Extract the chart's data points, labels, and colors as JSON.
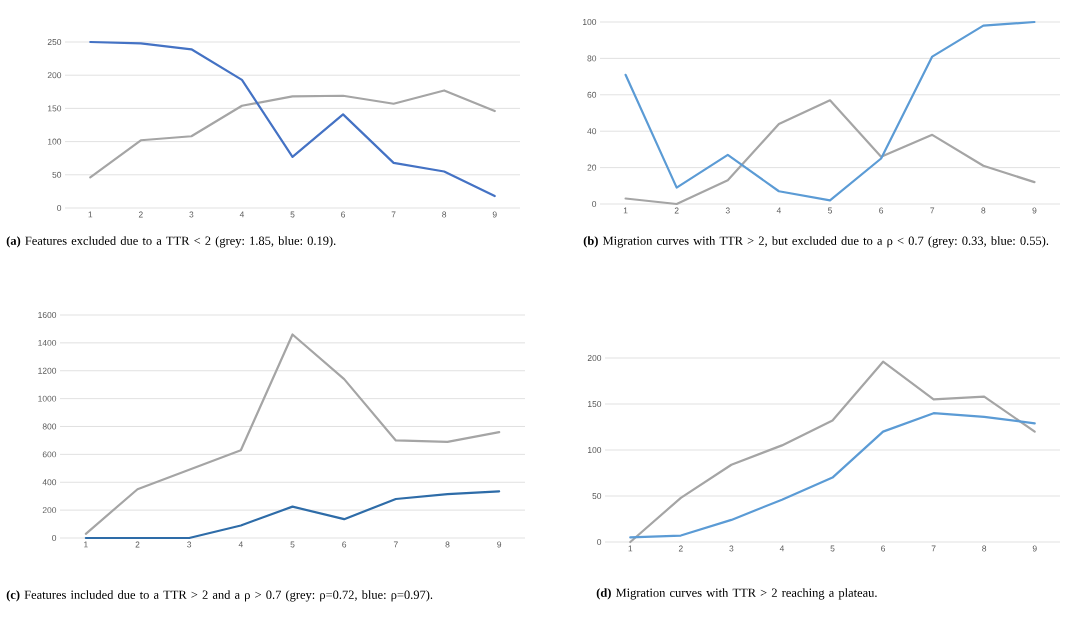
{
  "chart_data": [
    {
      "type": "line",
      "title": "**(a)** Features excluded due to a TTR < 2 (grey: 1.85, blue: 0.19).",
      "categories": [
        "1",
        "2",
        "3",
        "4",
        "5",
        "6",
        "7",
        "8",
        "9"
      ],
      "series": [
        {
          "color": "#a5a5a5",
          "values": [
            46,
            102,
            108,
            154,
            168,
            169,
            157,
            177,
            146
          ]
        },
        {
          "color": "#4472c4",
          "values": [
            250,
            248,
            239,
            193,
            77,
            141,
            68,
            55,
            18
          ]
        }
      ],
      "ylim": [
        0,
        250
      ],
      "yticks": [
        0,
        50,
        100,
        150,
        200,
        250
      ],
      "grid": "y"
    },
    {
      "type": "line",
      "title": "**(b)** Migration curves with TTR > 2, but excluded due to a ρ < 0.7 (grey: 0.33, blue: 0.55).",
      "categories": [
        "1",
        "2",
        "3",
        "4",
        "5",
        "6",
        "7",
        "8",
        "9"
      ],
      "series": [
        {
          "color": "#a5a5a5",
          "values": [
            3,
            0,
            13,
            44,
            57,
            26,
            38,
            21,
            12
          ]
        },
        {
          "color": "#5b9bd5",
          "values": [
            71,
            9,
            27,
            7,
            2,
            25,
            81,
            98,
            100
          ]
        }
      ],
      "ylim": [
        0,
        100
      ],
      "yticks": [
        0,
        20,
        40,
        60,
        80,
        100
      ],
      "grid": "y"
    },
    {
      "type": "line",
      "title": "**(c)** Features included due to a TTR > 2 and a ρ > 0.7 (grey: ρ=0.72, blue: ρ=0.97).",
      "categories": [
        "1",
        "2",
        "3",
        "4",
        "5",
        "6",
        "7",
        "8",
        "9"
      ],
      "series": [
        {
          "color": "#a5a5a5",
          "values": [
            30,
            350,
            490,
            630,
            1460,
            1140,
            700,
            690,
            760
          ]
        },
        {
          "color": "#2e6ca8",
          "values": [
            0,
            0,
            0,
            90,
            225,
            135,
            280,
            315,
            335
          ]
        }
      ],
      "ylim": [
        0,
        1600
      ],
      "yticks": [
        0,
        200,
        400,
        600,
        800,
        1000,
        1200,
        1400,
        1600
      ],
      "grid": "y"
    },
    {
      "type": "line",
      "title": "**(d)** Migration curves with TTR > 2 reaching a plateau.",
      "categories": [
        "1",
        "2",
        "3",
        "4",
        "5",
        "6",
        "7",
        "8",
        "9"
      ],
      "series": [
        {
          "color": "#a5a5a5",
          "values": [
            0,
            48,
            84,
            105,
            132,
            196,
            155,
            158,
            120
          ]
        },
        {
          "color": "#5b9bd5",
          "values": [
            5,
            7,
            24,
            46,
            70,
            120,
            140,
            136,
            129
          ]
        }
      ],
      "ylim": [
        0,
        200
      ],
      "yticks": [
        0,
        50,
        100,
        150,
        200
      ],
      "grid": "y"
    }
  ]
}
